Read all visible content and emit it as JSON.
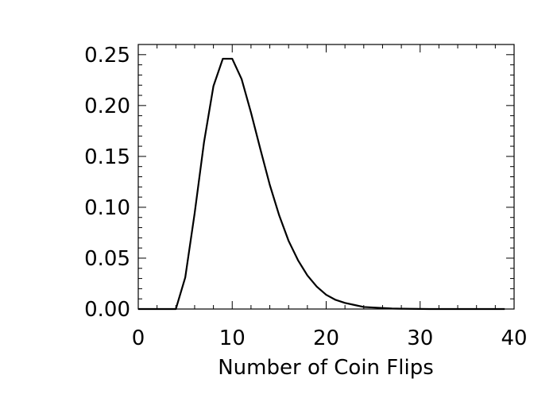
{
  "chart_data": {
    "type": "line",
    "title": "",
    "xlabel": "Number of Coin Flips",
    "ylabel": "",
    "xlim": [
      0,
      40
    ],
    "ylim": [
      0,
      0.26
    ],
    "grid": false,
    "x_ticks": [
      0,
      10,
      20,
      30,
      40
    ],
    "x_tick_labels": [
      "0",
      "10",
      "20",
      "30",
      "40"
    ],
    "y_ticks": [
      0,
      0.05,
      0.1,
      0.15,
      0.2,
      0.25
    ],
    "y_tick_labels": [
      "0.00",
      "0.05",
      "0.10",
      "0.15",
      "0.20",
      "0.25"
    ],
    "line_color": "#000000",
    "series": [
      {
        "x": [
          0,
          1,
          2,
          3,
          4,
          5,
          6,
          7,
          8,
          9,
          10,
          11,
          12,
          13,
          14,
          15,
          16,
          17,
          18,
          19,
          20,
          21,
          22,
          23,
          24,
          25,
          26,
          27,
          28,
          29,
          30,
          31,
          32,
          33,
          34,
          35,
          36,
          37,
          38,
          39
        ],
        "values": [
          0,
          0,
          0,
          0,
          0,
          0.031,
          0.094,
          0.164,
          0.219,
          0.246,
          0.246,
          0.226,
          0.193,
          0.157,
          0.122,
          0.092,
          0.067,
          0.048,
          0.033,
          0.022,
          0.014,
          0.009,
          0.006,
          0.004,
          0.002,
          0.0015,
          0.001,
          0.0005,
          0.0003,
          0.0002,
          0.0001,
          0,
          0,
          0,
          0,
          0,
          0,
          0,
          0,
          0
        ]
      }
    ]
  }
}
